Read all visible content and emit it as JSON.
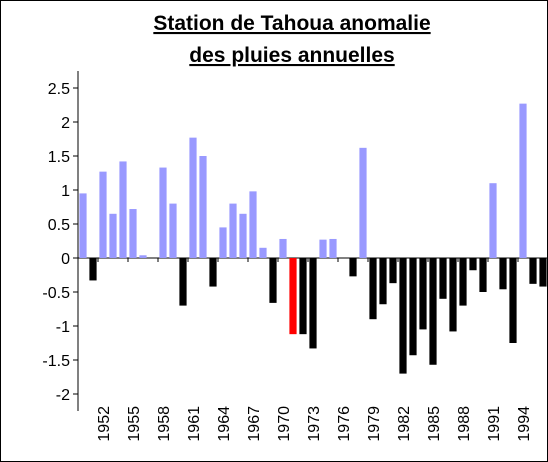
{
  "chart_data": {
    "type": "bar",
    "title": [
      "Station de Tahoua anomalie",
      "des pluies annuelles"
    ],
    "categories": [
      null,
      null,
      "1952",
      null,
      null,
      "1955",
      null,
      null,
      "1958",
      null,
      null,
      "1961",
      null,
      null,
      "1964",
      null,
      null,
      "1967",
      null,
      null,
      "1970",
      null,
      null,
      "1973",
      null,
      null,
      "1976",
      null,
      null,
      "1979",
      null,
      null,
      "1982",
      null,
      null,
      "1985",
      null,
      null,
      "1988",
      null,
      null,
      "1991",
      null,
      null,
      "1994",
      null,
      null
    ],
    "values": [
      0.95,
      -0.33,
      1.27,
      0.65,
      1.42,
      0.72,
      0.04,
      0,
      1.33,
      0.8,
      -0.7,
      1.77,
      1.5,
      -0.42,
      0.45,
      0.8,
      0.65,
      0.98,
      0.15,
      -0.66,
      0.28,
      -1.12,
      -1.12,
      -1.33,
      0.27,
      0.28,
      0,
      -0.27,
      1.62,
      -0.9,
      -0.68,
      -0.37,
      -1.7,
      -1.43,
      -1.05,
      -1.57,
      -0.6,
      -1.08,
      -0.7,
      -0.18,
      -0.5,
      1.1,
      -0.46,
      -1.25,
      2.27,
      -0.38,
      -0.42
    ],
    "positive_color": "#9999ff",
    "negative_color": "#000000",
    "highlight": {
      "index": 21,
      "color": "#ff0000"
    },
    "ylim": [
      -2.25,
      2.75
    ],
    "yticks": [
      -2,
      -1.5,
      -1,
      -0.5,
      0,
      0.5,
      1,
      1.5,
      2,
      2.5
    ]
  }
}
